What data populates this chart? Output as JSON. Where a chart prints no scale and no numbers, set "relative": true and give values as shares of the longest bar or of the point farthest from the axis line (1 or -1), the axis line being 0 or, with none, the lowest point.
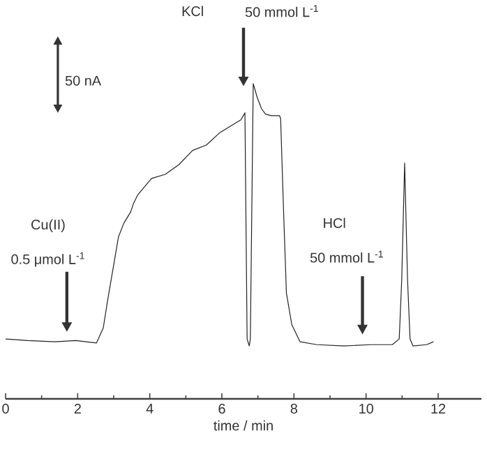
{
  "chart_data": {
    "type": "line",
    "relative": true,
    "xlabel": "time / min",
    "xlim": [
      0,
      13.2
    ],
    "xticks": [
      0,
      2,
      4,
      6,
      8,
      10,
      12
    ],
    "marker": "none",
    "line_style": "solid",
    "series": [
      {
        "color": "#222222",
        "x": [
          0,
          0.61,
          1.37,
          1.95,
          2.52,
          2.71,
          2.82,
          2.98,
          3.13,
          3.28,
          3.47,
          3.55,
          3.66,
          4.05,
          4.43,
          4.81,
          5.19,
          5.57,
          5.95,
          6.34,
          6.53,
          6.64,
          6.7,
          6.76,
          6.79,
          6.87,
          6.98,
          7.1,
          7.21,
          7.37,
          7.6,
          7.63,
          7.71,
          7.79,
          7.94,
          8.17,
          8.63,
          9.39,
          10.15,
          10.73,
          10.92,
          10.99,
          11.07,
          11.15,
          11.22,
          11.3,
          11.68,
          11.87
        ],
        "values": [
          0.19,
          0.185,
          0.181,
          0.185,
          0.177,
          0.225,
          0.305,
          0.412,
          0.513,
          0.557,
          0.593,
          0.62,
          0.646,
          0.699,
          0.712,
          0.743,
          0.788,
          0.805,
          0.845,
          0.872,
          0.885,
          0.907,
          0.19,
          0.168,
          0.19,
          1,
          0.956,
          0.92,
          0.903,
          0.898,
          0.898,
          0.889,
          0.601,
          0.336,
          0.235,
          0.181,
          0.172,
          0.168,
          0.172,
          0.172,
          0.19,
          0.38,
          0.748,
          0.38,
          0.19,
          0.168,
          0.172,
          0.181
        ]
      }
    ],
    "annotations": [
      "Cu(II)",
      "0.5 μmol L$^{-1}$",
      "KCl",
      "50 mmol L$^{-1}$",
      "HCl",
      "50 mmol L$^{-1}$",
      "50 nA"
    ]
  }
}
